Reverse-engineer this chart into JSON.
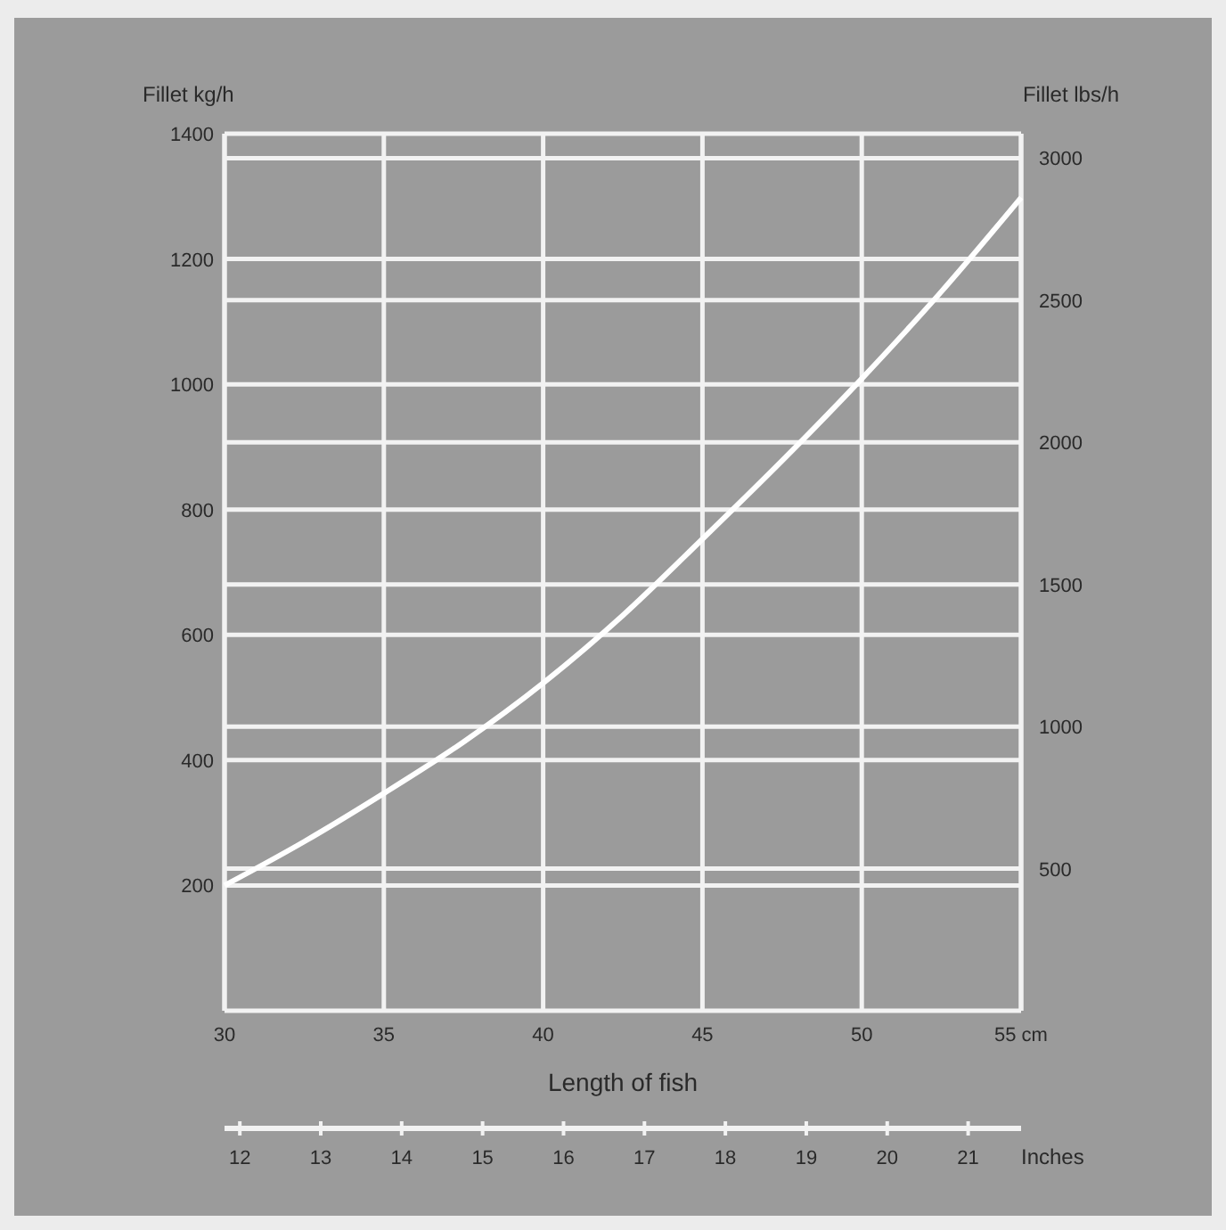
{
  "chart_data": {
    "type": "line",
    "xlabel": "Length of fish",
    "ylabel": "Fillet kg/h",
    "y2label": "Fillet lbs/h",
    "x2label": "Inches",
    "x": [
      30,
      32.5,
      35,
      37.5,
      40,
      42.5,
      45,
      47.5,
      50,
      52.5,
      55
    ],
    "series": [
      {
        "color": "#ffffff",
        "values": [
          200,
          270,
          347,
          429,
          523,
          631,
          753,
          878,
          1009,
          1148,
          1298
        ]
      }
    ],
    "xlim": [
      30,
      55
    ],
    "xticks": [
      30,
      35,
      40,
      45,
      50,
      {
        "value": 55,
        "label": "55 cm"
      }
    ],
    "ylim": [
      0,
      1400
    ],
    "yticks": [
      200,
      400,
      600,
      800,
      1000,
      1200,
      1400
    ],
    "y2lim": [
      0,
      3086
    ],
    "y2ticks": [
      500,
      1000,
      1500,
      2000,
      2500,
      3000
    ],
    "x2lim": [
      11.811,
      21.654
    ],
    "x2ticks": [
      12,
      13,
      14,
      15,
      16,
      17,
      18,
      19,
      20,
      21
    ],
    "grid": true,
    "marker": "none",
    "line_style": "solid"
  }
}
